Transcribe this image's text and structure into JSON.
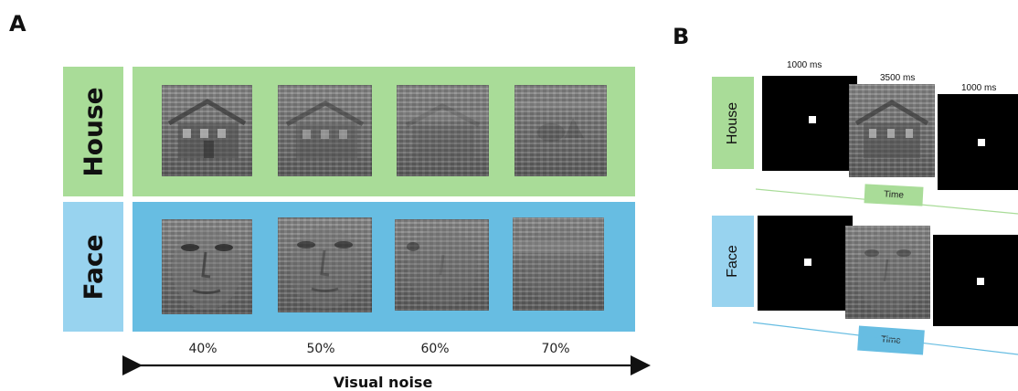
{
  "panels": {
    "a": "A",
    "b": "B"
  },
  "conditions": {
    "house": "House",
    "face": "Face"
  },
  "noise_levels": [
    "40%",
    "50%",
    "60%",
    "70%"
  ],
  "axis_title": "Visual noise",
  "timeline": {
    "durations": [
      "1000 ms",
      "3500 ms",
      "1000 ms"
    ],
    "time_label": "Time"
  },
  "colors": {
    "house_band": "#a9dc98",
    "face_band": "#67bde2",
    "face_label": "#98d3ef"
  }
}
